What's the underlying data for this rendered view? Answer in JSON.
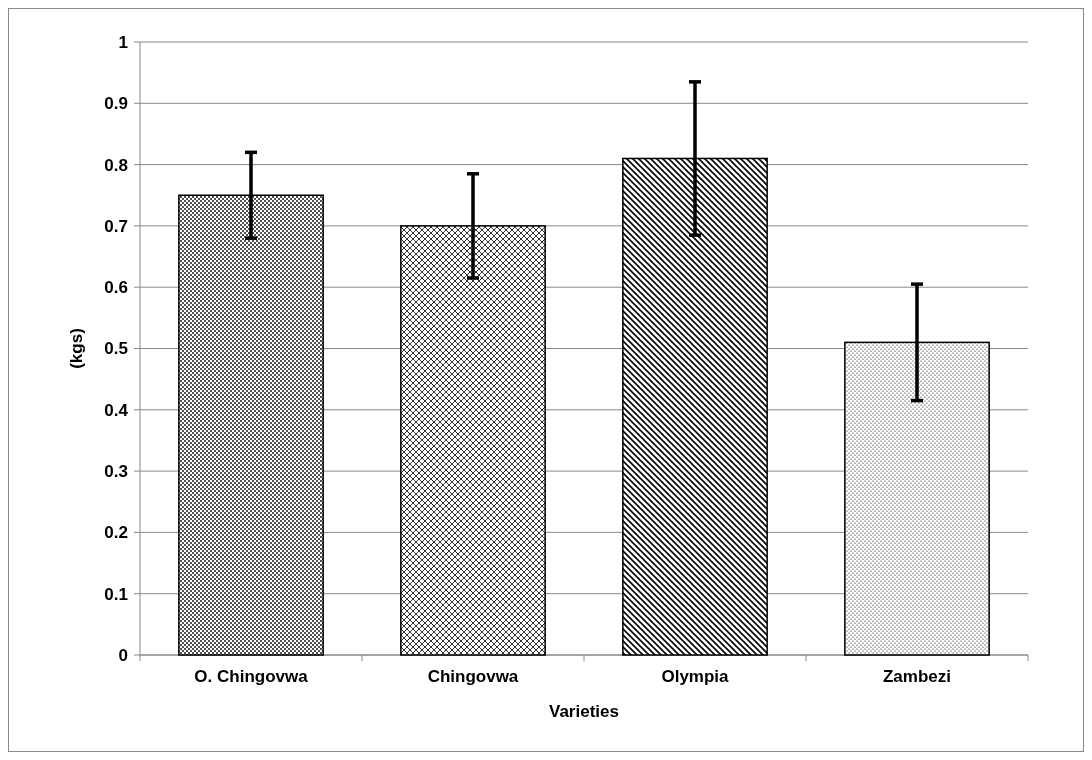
{
  "chart_data": {
    "type": "bar",
    "xlabel": "Varieties",
    "ylabel": "(kgs)",
    "categories": [
      "O. Chingovwa",
      "Chingovwa",
      "Olympia",
      "Zambezi"
    ],
    "values": [
      0.75,
      0.7,
      0.81,
      0.51
    ],
    "errors": [
      0.07,
      0.085,
      0.125,
      0.095
    ],
    "colors": [
      "#000000",
      "#000000",
      "#000000",
      "#000000"
    ],
    "ylim": [
      0,
      1
    ],
    "yticks": [
      0,
      0.1,
      0.2,
      0.3,
      0.4,
      0.5,
      0.6,
      0.7,
      0.8,
      0.9,
      1
    ],
    "grid": "y"
  }
}
